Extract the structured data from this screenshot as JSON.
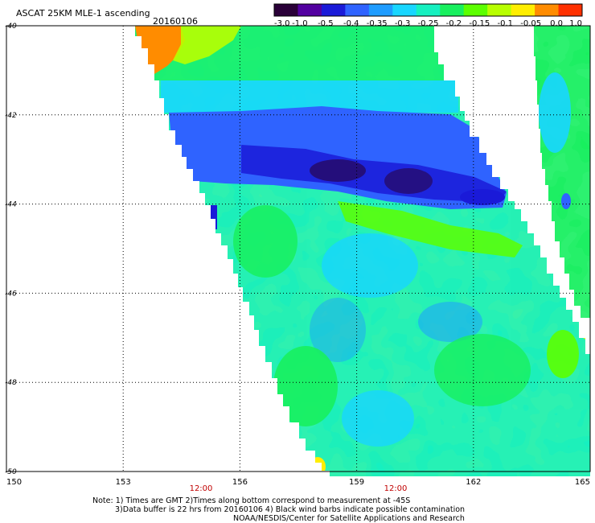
{
  "header": {
    "title": "ASCAT 25KM MLE-1 ascending",
    "date": "20160106"
  },
  "colorbar": {
    "ticks": [
      "-3.0",
      "-1.0",
      "-0.5",
      "-0.4",
      "-0.35",
      "-0.3",
      "-0.25",
      "-0.2",
      "-0.15",
      "-0.1",
      "-0.05",
      "0.0",
      "1.0"
    ],
    "colors": [
      "#2a0038",
      "#5200a0",
      "#1a1ad8",
      "#2f63ff",
      "#1e9cff",
      "#18d6ff",
      "#16f0c0",
      "#18f05e",
      "#5cff00",
      "#b8ff00",
      "#ffee00",
      "#ff8c00",
      "#ff3000"
    ]
  },
  "footer": {
    "note_line1": "Note: 1) Times are GMT 2)Times along bottom correspond to measurement at -45S",
    "note_line2": "3)Data buffer is 22 hrs from 20160106 4) Black wind barbs indicate possible contamination",
    "note_line3": "NOAA/NESDIS/Center for Satellite Applications and Research"
  },
  "chart_data": {
    "type": "heatmap",
    "title": "ASCAT 25KM MLE-1 ascending",
    "subtitle": "20160106",
    "x_ticks": [
      "150",
      "153",
      "156",
      "159",
      "162",
      "165"
    ],
    "y_ticks": [
      "-40",
      "-42",
      "-44",
      "-46",
      "-48",
      "-50"
    ],
    "xlim": [
      150,
      165
    ],
    "ylim": [
      -50,
      -40
    ],
    "grid": true,
    "time_labels": [
      {
        "lon": 155,
        "text": "12:00"
      },
      {
        "lon": 160,
        "text": "12:00"
      }
    ],
    "colorbar_range": [
      -3.0,
      1.0
    ],
    "field_regions": [
      {
        "region": "northwest corner near 153.5E 40.5S",
        "value": 0.5
      },
      {
        "region": "band 42.5S-44S from 154E to 162.5E",
        "value": -0.4
      },
      {
        "region": "core near 158E-161E, 43.5S",
        "value": -0.5
      },
      {
        "region": "south of 44S",
        "value": -0.2
      },
      {
        "region": "eastern swath strip 164E-165E",
        "value": -0.2
      }
    ]
  }
}
